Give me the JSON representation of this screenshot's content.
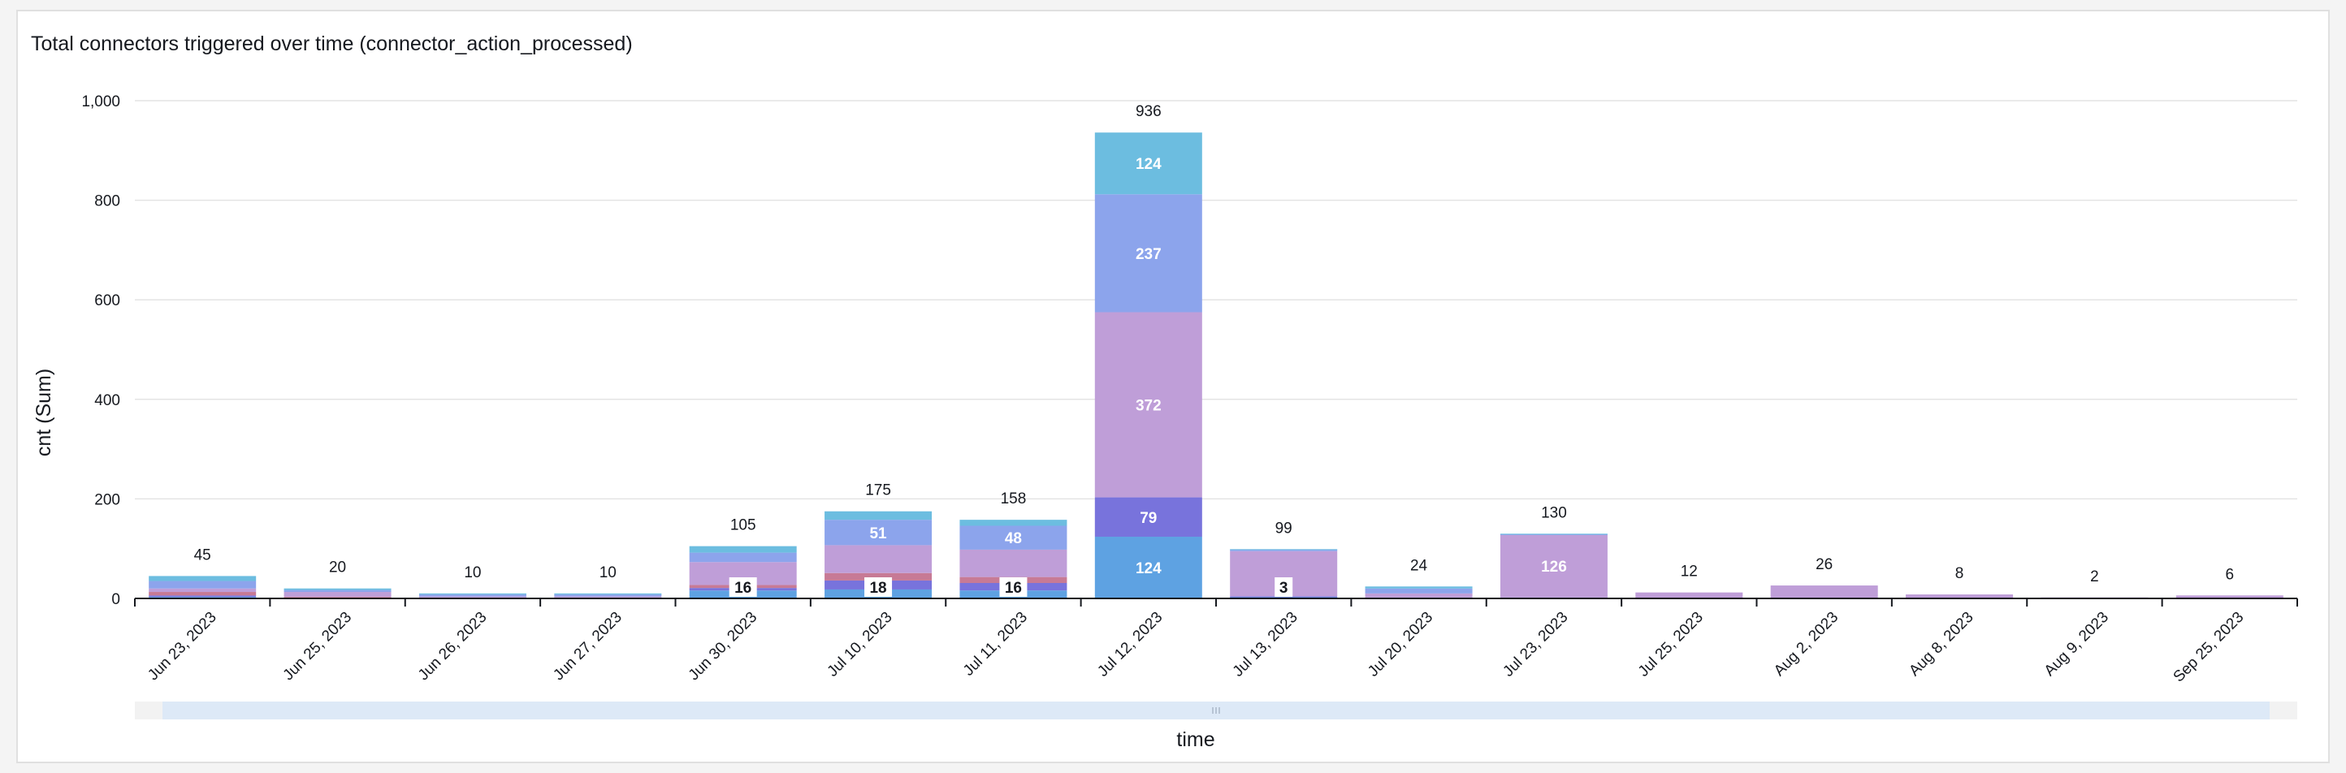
{
  "panel": {
    "title": "Total connectors triggered over time (connector_action_processed)"
  },
  "colors": {
    "grid": "#e4e4e4",
    "axis": "#16191f",
    "scroll_track": "#f2f2f2",
    "scroll_thumb": "#dde9f7",
    "scroll_grip": "#aab7c8"
  },
  "chart_data": {
    "type": "bar",
    "stacked": true,
    "xlabel": "time",
    "ylabel": "cnt (Sum)",
    "ylim": [
      0,
      1000
    ],
    "yticks": [
      0,
      200,
      400,
      600,
      800,
      1000
    ],
    "ytick_labels": [
      "0",
      "200",
      "400",
      "600",
      "800",
      "1,000"
    ],
    "grid": true,
    "legend": "none",
    "categories": [
      "Jun 23, 2023",
      "Jun 25, 2023",
      "Jun 26, 2023",
      "Jun 27, 2023",
      "Jun 30, 2023",
      "Jul 10, 2023",
      "Jul 11, 2023",
      "Jul 12, 2023",
      "Jul 13, 2023",
      "Jul 20, 2023",
      "Jul 23, 2023",
      "Jul 25, 2023",
      "Aug 2, 2023",
      "Aug 8, 2023",
      "Aug 9, 2023",
      "Sep 25, 2023"
    ],
    "totals": [
      45,
      20,
      10,
      10,
      105,
      175,
      158,
      936,
      99,
      24,
      130,
      12,
      26,
      8,
      2,
      6
    ],
    "total_labels": [
      "45",
      "20",
      "10",
      "10",
      "105",
      "175",
      "158",
      "936",
      "99",
      "24",
      "130",
      "12",
      "26",
      "8",
      "2",
      "6"
    ],
    "series": [
      {
        "color": "#5ea2e2",
        "values": [
          3,
          1,
          1,
          1,
          16,
          18,
          16,
          124,
          3,
          1,
          1,
          0,
          0,
          0,
          0,
          0
        ],
        "labels": [
          "",
          "",
          "",
          "",
          "16",
          "18",
          "16",
          "124",
          "3",
          "",
          "",
          "",
          "",
          "",
          "",
          ""
        ]
      },
      {
        "color": "#7873dc",
        "values": [
          3,
          1,
          1,
          1,
          5,
          18,
          15,
          79,
          1,
          1,
          1,
          0,
          0,
          0,
          0,
          0
        ],
        "labels": [
          "",
          "",
          "",
          "",
          "",
          "",
          "",
          "79",
          "",
          "",
          "",
          "",
          "",
          "",
          "",
          ""
        ]
      },
      {
        "color": "#c77a95",
        "values": [
          7,
          1,
          0,
          0,
          6,
          15,
          12,
          0,
          0,
          0,
          0,
          0,
          0,
          0,
          0,
          0
        ],
        "labels": [
          "",
          "",
          "",
          "",
          "",
          "",
          "",
          "",
          "",
          "",
          "",
          "",
          "",
          "",
          "",
          ""
        ]
      },
      {
        "color": "#bf9ed8",
        "values": [
          7,
          10,
          2,
          2,
          46,
          56,
          55,
          372,
          91,
          8,
          126,
          12,
          26,
          8,
          2,
          6
        ],
        "labels": [
          "",
          "",
          "",
          "",
          "",
          "",
          "",
          "372",
          "",
          "",
          "126",
          "",
          "",
          "",
          "",
          ""
        ]
      },
      {
        "color": "#8ca4ec",
        "values": [
          15,
          4,
          4,
          4,
          19,
          51,
          48,
          237,
          3,
          10,
          1,
          0,
          0,
          0,
          0,
          0
        ],
        "labels": [
          "",
          "",
          "",
          "",
          "",
          "51",
          "48",
          "237",
          "",
          "",
          "",
          "",
          "",
          "",
          "",
          ""
        ]
      },
      {
        "color": "#6cbde0",
        "values": [
          10,
          3,
          2,
          2,
          13,
          17,
          12,
          124,
          1,
          4,
          1,
          0,
          0,
          0,
          0,
          0
        ],
        "labels": [
          "",
          "",
          "",
          "",
          "",
          "",
          "",
          "124",
          "",
          "",
          "",
          "",
          "",
          "",
          "",
          ""
        ]
      }
    ]
  }
}
